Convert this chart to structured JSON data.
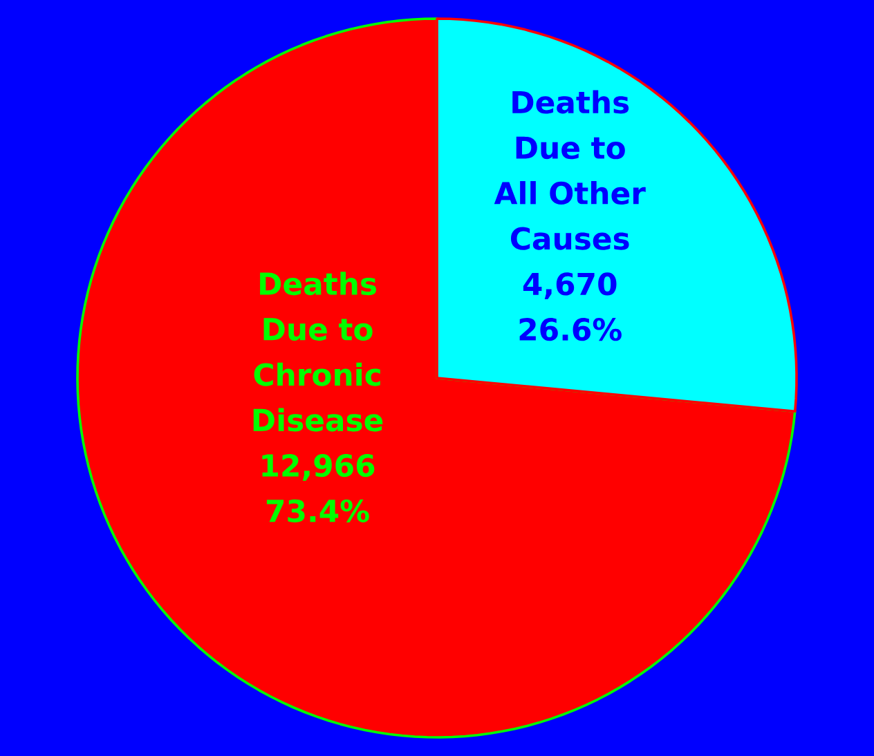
{
  "chart_data": {
    "type": "pie",
    "categories": [
      "Deaths Due to Chronic Disease",
      "Deaths Due to All Other Causes"
    ],
    "values": [
      12966,
      4670
    ],
    "colors": [
      "#ff0000",
      "#00ffff"
    ],
    "value_labels": [
      "12,966",
      "4,670"
    ],
    "annotations": [
      "73.4%",
      "26.6%"
    ]
  }
}
